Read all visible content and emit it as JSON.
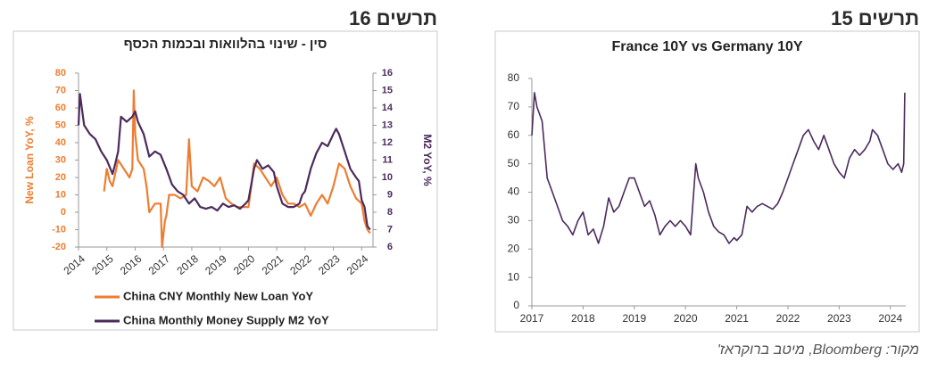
{
  "source": "מקור: Bloomberg, מיטב ברוקראז'",
  "chart_data": [
    {
      "type": "line",
      "figure_label": "תרשים 16",
      "title": "סין - שינוי בהלוואות ובכמות הכסף",
      "ylabel": "New Loan YoY, %",
      "y2label": "M2 YoY, %",
      "xlim": [
        2014,
        2024.4
      ],
      "xticks": [
        2014,
        2015,
        2016,
        2017,
        2018,
        2019,
        2020,
        2021,
        2022,
        2023,
        2024
      ],
      "ylim": [
        -20,
        80
      ],
      "yticks": [
        -20,
        -10,
        0,
        10,
        20,
        30,
        40,
        50,
        60,
        70,
        80
      ],
      "y2lim": [
        6,
        16
      ],
      "y2ticks": [
        6,
        7,
        8,
        9,
        10,
        11,
        12,
        13,
        14,
        15,
        16
      ],
      "legend": "bottom",
      "series": [
        {
          "name": "China CNY Monthly New Loan YoY",
          "color": "#ed7d31",
          "axis": "y",
          "x": [
            2014.9,
            2015.0,
            2015.1,
            2015.2,
            2015.4,
            2015.6,
            2015.8,
            2015.9,
            2015.95,
            2016.0,
            2016.1,
            2016.3,
            2016.4,
            2016.5,
            2016.7,
            2016.9,
            2016.95,
            2017.05,
            2017.1,
            2017.2,
            2017.4,
            2017.6,
            2017.8,
            2017.9,
            2018.0,
            2018.2,
            2018.4,
            2018.6,
            2018.8,
            2019.0,
            2019.2,
            2019.4,
            2019.6,
            2019.8,
            2020.0,
            2020.1,
            2020.2,
            2020.4,
            2020.6,
            2020.8,
            2021.0,
            2021.2,
            2021.4,
            2021.6,
            2021.8,
            2022.0,
            2022.2,
            2022.4,
            2022.6,
            2022.8,
            2023.0,
            2023.2,
            2023.4,
            2023.6,
            2023.8,
            2024.0,
            2024.1,
            2024.2,
            2024.3
          ],
          "values": [
            12,
            25,
            18,
            15,
            30,
            25,
            20,
            25,
            70,
            45,
            30,
            25,
            15,
            0,
            5,
            5,
            -20,
            -5,
            -2,
            10,
            10,
            8,
            10,
            42,
            15,
            12,
            20,
            18,
            15,
            20,
            8,
            5,
            3,
            3,
            3,
            15,
            28,
            25,
            20,
            15,
            20,
            10,
            5,
            5,
            3,
            5,
            -2,
            5,
            10,
            5,
            15,
            28,
            25,
            15,
            8,
            5,
            -5,
            -10,
            -12
          ]
        },
        {
          "name": "China Monthly Money Supply M2 YoY",
          "color": "#4b2a5c",
          "axis": "y2",
          "x": [
            2014.0,
            2014.05,
            2014.2,
            2014.4,
            2014.6,
            2014.8,
            2015.0,
            2015.2,
            2015.3,
            2015.4,
            2015.5,
            2015.7,
            2015.9,
            2016.0,
            2016.1,
            2016.3,
            2016.5,
            2016.7,
            2016.9,
            2017.1,
            2017.3,
            2017.5,
            2017.7,
            2017.9,
            2018.1,
            2018.3,
            2018.5,
            2018.7,
            2018.9,
            2019.1,
            2019.3,
            2019.5,
            2019.7,
            2019.9,
            2020.0,
            2020.2,
            2020.3,
            2020.5,
            2020.7,
            2020.9,
            2021.0,
            2021.2,
            2021.4,
            2021.6,
            2021.8,
            2021.9,
            2022.0,
            2022.2,
            2022.4,
            2022.6,
            2022.8,
            2023.0,
            2023.1,
            2023.2,
            2023.4,
            2023.6,
            2023.8,
            2023.9,
            2024.0,
            2024.1,
            2024.2,
            2024.3
          ],
          "values": [
            13,
            14.8,
            13,
            12.5,
            12.2,
            11.5,
            11,
            10.2,
            10.8,
            11.5,
            13.5,
            13.2,
            13.5,
            13.8,
            13.2,
            12.5,
            11.2,
            11.5,
            11.3,
            10.5,
            9.6,
            9.2,
            9.0,
            8.5,
            8.8,
            8.3,
            8.2,
            8.3,
            8.1,
            8.5,
            8.3,
            8.4,
            8.2,
            8.5,
            8.7,
            10.5,
            11.0,
            10.5,
            10.7,
            10.3,
            9.5,
            8.5,
            8.3,
            8.3,
            8.5,
            9.0,
            9.2,
            10.5,
            11.4,
            12.0,
            11.8,
            12.5,
            12.8,
            12.5,
            11.5,
            10.5,
            10.0,
            9.8,
            8.7,
            8.3,
            7.2,
            7.0
          ]
        }
      ]
    },
    {
      "type": "line",
      "figure_label": "תרשים 15",
      "title": "France 10Y vs Germany 10Y",
      "xlim": [
        2017,
        2024.3
      ],
      "xticks": [
        2017,
        2018,
        2019,
        2020,
        2021,
        2022,
        2023,
        2024
      ],
      "ylim": [
        0,
        80
      ],
      "yticks": [
        0,
        10,
        20,
        30,
        40,
        50,
        60,
        70,
        80
      ],
      "color": "#4b2a5c",
      "x": [
        2017.0,
        2017.05,
        2017.1,
        2017.2,
        2017.3,
        2017.4,
        2017.5,
        2017.6,
        2017.7,
        2017.8,
        2017.9,
        2018.0,
        2018.1,
        2018.2,
        2018.3,
        2018.4,
        2018.5,
        2018.6,
        2018.7,
        2018.8,
        2018.9,
        2019.0,
        2019.1,
        2019.2,
        2019.3,
        2019.4,
        2019.5,
        2019.6,
        2019.7,
        2019.8,
        2019.9,
        2020.0,
        2020.1,
        2020.2,
        2020.25,
        2020.35,
        2020.45,
        2020.55,
        2020.65,
        2020.75,
        2020.85,
        2020.95,
        2021.0,
        2021.1,
        2021.2,
        2021.3,
        2021.4,
        2021.5,
        2021.6,
        2021.7,
        2021.8,
        2021.9,
        2022.0,
        2022.1,
        2022.2,
        2022.3,
        2022.4,
        2022.5,
        2022.6,
        2022.7,
        2022.8,
        2022.9,
        2023.0,
        2023.1,
        2023.2,
        2023.3,
        2023.4,
        2023.5,
        2023.6,
        2023.65,
        2023.75,
        2023.85,
        2023.95,
        2024.05,
        2024.15,
        2024.22,
        2024.26,
        2024.28
      ],
      "values": [
        60,
        75,
        70,
        65,
        45,
        40,
        35,
        30,
        28,
        25,
        30,
        33,
        25,
        27,
        22,
        28,
        38,
        33,
        35,
        40,
        45,
        45,
        40,
        35,
        37,
        32,
        25,
        28,
        30,
        28,
        30,
        28,
        25,
        50,
        45,
        40,
        33,
        28,
        26,
        25,
        22,
        24,
        23,
        25,
        35,
        33,
        35,
        36,
        35,
        34,
        36,
        40,
        45,
        50,
        55,
        60,
        62,
        58,
        55,
        60,
        55,
        50,
        47,
        45,
        52,
        55,
        53,
        55,
        58,
        62,
        60,
        55,
        50,
        48,
        50,
        47,
        50,
        75
      ]
    }
  ]
}
